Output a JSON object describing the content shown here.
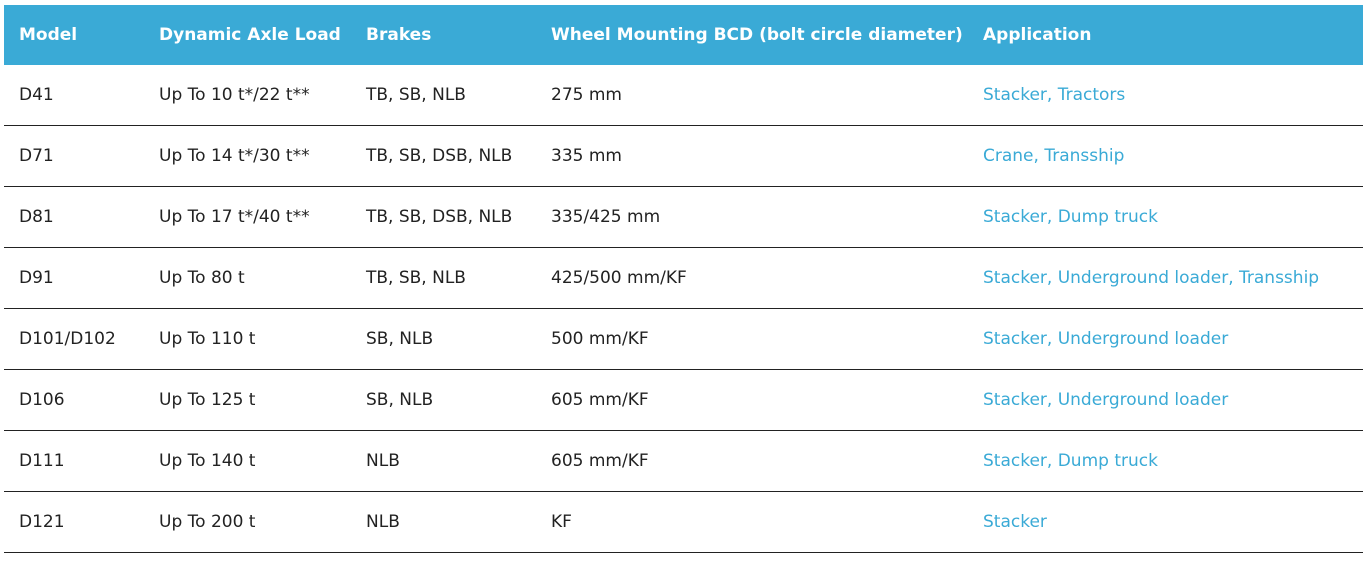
{
  "table": {
    "header": [
      "Model",
      "Dynamic Axle Load",
      "Brakes",
      "Wheel Mounting BCD (bolt circle diameter)",
      "Application"
    ],
    "rows": [
      [
        "D41",
        "Up To 10 t*/22 t**",
        "TB, SB, NLB",
        "275 mm",
        "Stacker, Tractors"
      ],
      [
        "D71",
        "Up To 14 t*/30 t**",
        "TB, SB, DSB, NLB",
        "335 mm",
        "Crane, Transship"
      ],
      [
        "D81",
        "Up To 17 t*/40 t**",
        "TB, SB, DSB, NLB",
        "335/425 mm",
        "Stacker, Dump truck"
      ],
      [
        "D91",
        "Up To 80 t",
        "TB, SB, NLB",
        "425/500 mm/KF",
        "Stacker, Underground loader, Transship"
      ],
      [
        "D101/D102",
        "Up To 110 t",
        "SB, NLB",
        "500 mm/KF",
        "Stacker, Underground loader"
      ],
      [
        "D106",
        "Up To 125 t",
        "SB, NLB",
        "605 mm/KF",
        "Stacker, Underground loader"
      ],
      [
        "D111",
        "Up To 140 t",
        "NLB",
        "605 mm/KF",
        "Stacker, Dump truck"
      ],
      [
        "D121",
        "Up To 200 t",
        "NLB",
        "KF",
        "Stacker"
      ]
    ]
  }
}
